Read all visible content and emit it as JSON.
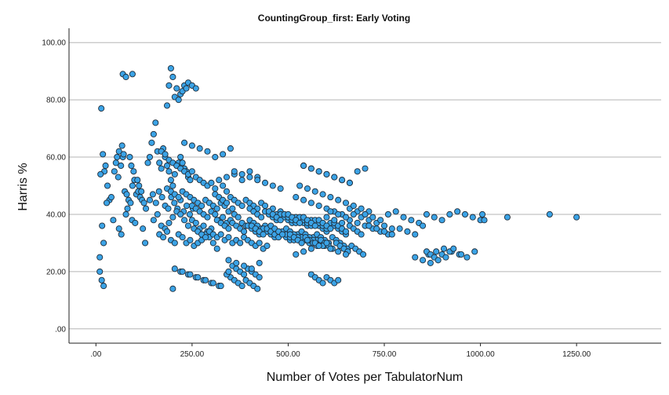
{
  "chart_data": {
    "type": "scatter",
    "title": "CountingGroup_first: Early Voting",
    "xlabel": "Number of Votes per TabulatorNum",
    "ylabel": "Harris %",
    "xlim": [
      -70,
      1470
    ],
    "ylim": [
      -5,
      105
    ],
    "x_ticks": [
      0,
      250,
      500,
      750,
      1000,
      1250
    ],
    "x_tick_labels": [
      ".00",
      "250.00",
      "500.00",
      "750.00",
      "1000.00",
      "1250.00"
    ],
    "y_ticks": [
      0,
      20,
      40,
      60,
      80,
      100
    ],
    "y_tick_labels": [
      ".00",
      "20.00",
      "40.00",
      "60.00",
      "80.00",
      "100.00"
    ],
    "grid": "horizontal",
    "marker_color": "#3ba3e6",
    "series": [
      {
        "x": [
          14,
          18,
          22,
          12,
          25,
          30,
          35,
          40,
          28,
          16,
          20,
          45,
          10,
          55,
          60,
          48,
          52,
          70,
          65,
          58,
          75,
          80,
          85,
          90,
          95,
          100,
          105,
          110,
          115,
          120,
          125,
          130,
          68,
          72,
          88,
          92,
          98,
          108,
          112,
          118,
          60,
          66,
          78,
          82,
          94,
          102,
          122,
          128,
          135,
          140,
          145,
          150,
          155,
          160,
          165,
          170,
          175,
          180,
          185,
          190,
          195,
          200,
          205,
          210,
          215,
          220,
          225,
          230,
          235,
          240,
          245,
          140,
          148,
          156,
          164,
          172,
          180,
          188,
          196,
          204,
          212,
          220,
          228,
          236,
          244,
          252,
          150,
          160,
          170,
          180,
          190,
          200,
          210,
          220,
          230,
          240,
          250,
          260,
          270,
          280,
          290,
          300,
          165,
          175,
          185,
          195,
          205,
          215,
          225,
          235,
          245,
          255,
          265,
          275,
          285,
          295,
          305,
          315,
          170,
          180,
          190,
          200,
          210,
          220,
          230,
          240,
          250,
          260,
          270,
          280,
          290,
          300,
          310,
          320,
          330,
          340,
          185,
          195,
          205,
          215,
          225,
          235,
          245,
          255,
          265,
          275,
          285,
          295,
          305,
          315,
          325,
          335,
          345,
          355,
          250,
          260,
          270,
          280,
          290,
          300,
          310,
          320,
          330,
          340,
          350,
          360,
          370,
          380,
          390,
          400,
          410,
          420,
          430,
          440,
          255,
          265,
          275,
          285,
          295,
          305,
          315,
          325,
          335,
          345,
          355,
          365,
          375,
          385,
          395,
          405,
          415,
          425,
          435,
          445,
          310,
          320,
          330,
          340,
          350,
          360,
          370,
          380,
          390,
          400,
          410,
          420,
          430,
          440,
          450,
          460,
          470,
          480,
          490,
          500,
          315,
          325,
          335,
          345,
          355,
          365,
          375,
          385,
          395,
          405,
          415,
          425,
          435,
          445,
          455,
          465,
          475,
          485,
          495,
          505,
          400,
          410,
          420,
          430,
          440,
          450,
          460,
          470,
          480,
          490,
          500,
          510,
          520,
          530,
          540,
          550,
          560,
          570,
          580,
          590,
          600,
          405,
          415,
          425,
          435,
          445,
          455,
          465,
          475,
          485,
          495,
          505,
          515,
          525,
          535,
          545,
          555,
          565,
          575,
          585,
          595,
          605,
          450,
          460,
          470,
          480,
          490,
          500,
          510,
          520,
          530,
          540,
          550,
          560,
          570,
          580,
          590,
          600,
          610,
          620,
          630,
          640,
          650,
          455,
          465,
          475,
          485,
          495,
          505,
          515,
          525,
          535,
          545,
          555,
          565,
          575,
          585,
          595,
          605,
          615,
          625,
          635,
          645,
          655,
          500,
          510,
          520,
          530,
          540,
          550,
          560,
          570,
          580,
          590,
          600,
          610,
          620,
          630,
          640,
          650,
          660,
          670,
          680,
          690,
          505,
          515,
          525,
          535,
          545,
          555,
          565,
          575,
          585,
          595,
          605,
          615,
          625,
          635,
          645,
          655,
          665,
          675,
          685,
          695,
          520,
          540,
          560,
          580,
          600,
          620,
          640,
          660,
          680,
          700,
          530,
          550,
          570,
          590,
          610,
          630,
          650,
          670,
          690,
          710,
          600,
          620,
          640,
          660,
          680,
          700,
          720,
          740,
          760,
          610,
          630,
          650,
          670,
          690,
          710,
          730,
          750,
          770,
          700,
          720,
          740,
          760,
          780,
          800,
          820,
          840,
          710,
          730,
          750,
          770,
          790,
          810,
          830,
          850,
          860,
          880,
          900,
          920,
          940,
          960,
          980,
          1000,
          865,
          885,
          905,
          925,
          945,
          965,
          985,
          1010,
          1070,
          1180,
          1250,
          1005,
          350,
          360,
          370,
          380,
          390,
          400,
          410,
          420,
          355,
          365,
          375,
          385,
          395,
          405,
          415,
          425,
          560,
          570,
          580,
          590,
          600,
          610,
          620,
          630,
          860,
          870,
          880,
          890,
          900,
          910,
          920,
          930,
          950,
          830,
          850,
          870,
          340,
          360,
          380,
          400,
          420,
          345,
          365,
          385,
          405,
          425,
          200,
          220,
          240,
          260,
          280,
          300,
          320,
          340,
          205,
          225,
          245,
          265,
          285,
          305,
          325,
          345,
          230,
          250,
          270,
          290,
          310,
          330,
          350,
          540,
          560,
          580,
          600,
          620,
          640,
          660,
          550,
          570,
          590,
          610,
          630,
          650,
          540,
          560,
          580,
          600,
          620,
          640,
          660,
          680,
          700,
          10,
          15,
          20,
          70,
          78,
          95,
          190,
          195,
          200,
          210,
          220,
          230,
          240,
          250,
          260,
          185,
          205,
          215,
          225,
          235,
          360,
          380,
          400,
          420,
          440,
          460,
          480,
          520,
          540,
          560,
          580,
          600
        ],
        "y": [
          77,
          61,
          55,
          54,
          57,
          50,
          45,
          46,
          44,
          36,
          30,
          38,
          25,
          60,
          62,
          55,
          58,
          60,
          57,
          53,
          48,
          47,
          45,
          44,
          50,
          52,
          47,
          48,
          46,
          45,
          44,
          42,
          64,
          61,
          60,
          57,
          55,
          52,
          50,
          48,
          35,
          33,
          40,
          42,
          38,
          37,
          35,
          30,
          58,
          60,
          65,
          68,
          72,
          62,
          58,
          56,
          63,
          60,
          57,
          55,
          52,
          50,
          54,
          57,
          58,
          60,
          58,
          56,
          55,
          53,
          52,
          45,
          47,
          44,
          48,
          46,
          43,
          42,
          46,
          44,
          42,
          45,
          41,
          43,
          40,
          42,
          38,
          40,
          36,
          35,
          37,
          39,
          41,
          40,
          38,
          36,
          38,
          37,
          35,
          36,
          34,
          35,
          33,
          32,
          34,
          31,
          30,
          33,
          32,
          30,
          31,
          29,
          30,
          31,
          33,
          32,
          30,
          28,
          62,
          61,
          59,
          58,
          57,
          56,
          55,
          54,
          55,
          53,
          52,
          51,
          50,
          51,
          49,
          52,
          50,
          48,
          49,
          48,
          47,
          46,
          48,
          47,
          46,
          45,
          44,
          43,
          45,
          44,
          43,
          42,
          44,
          43,
          41,
          42,
          43,
          42,
          41,
          40,
          39,
          41,
          40,
          38,
          39,
          37,
          38,
          40,
          39,
          37,
          36,
          38,
          37,
          36,
          35,
          36,
          35,
          34,
          33,
          32,
          34,
          33,
          32,
          33,
          31,
          32,
          30,
          31,
          30,
          32,
          31,
          30,
          29,
          30,
          28,
          29,
          47,
          46,
          45,
          44,
          46,
          45,
          44,
          43,
          45,
          44,
          43,
          42,
          44,
          43,
          41,
          42,
          40,
          41,
          40,
          39,
          38,
          37,
          36,
          35,
          37,
          36,
          35,
          34,
          36,
          35,
          34,
          33,
          35,
          34,
          33,
          32,
          34,
          33,
          32,
          31,
          42,
          41,
          40,
          39,
          41,
          40,
          39,
          38,
          40,
          39,
          38,
          37,
          39,
          38,
          37,
          36,
          38,
          37,
          36,
          35,
          34,
          36,
          35,
          34,
          33,
          35,
          34,
          33,
          32,
          34,
          33,
          32,
          31,
          33,
          32,
          31,
          30,
          32,
          31,
          30,
          29,
          30,
          41,
          40,
          39,
          38,
          40,
          39,
          38,
          37,
          39,
          38,
          37,
          36,
          38,
          37,
          36,
          35,
          37,
          36,
          35,
          34,
          33,
          36,
          35,
          34,
          33,
          35,
          34,
          33,
          32,
          34,
          33,
          32,
          31,
          33,
          32,
          31,
          30,
          32,
          31,
          30,
          29,
          28,
          40,
          39,
          38,
          37,
          39,
          38,
          37,
          36,
          38,
          37,
          36,
          35,
          37,
          36,
          35,
          34,
          36,
          35,
          34,
          33,
          33,
          32,
          31,
          30,
          32,
          31,
          30,
          29,
          31,
          30,
          29,
          28,
          30,
          29,
          28,
          27,
          29,
          28,
          27,
          26,
          46,
          45,
          44,
          43,
          42,
          41,
          40,
          42,
          41,
          40,
          50,
          49,
          48,
          47,
          46,
          45,
          44,
          43,
          42,
          41,
          39,
          38,
          37,
          38,
          37,
          36,
          35,
          34,
          33,
          41,
          40,
          39,
          40,
          39,
          38,
          37,
          36,
          35,
          40,
          39,
          38,
          40,
          41,
          39,
          38,
          37,
          36,
          35,
          34,
          33,
          35,
          34,
          33,
          36,
          40,
          39,
          38,
          40,
          41,
          40,
          39,
          38,
          26,
          27,
          28,
          27,
          26,
          25,
          27,
          38,
          39,
          40,
          39,
          40,
          18,
          17,
          16,
          15,
          17,
          16,
          15,
          14,
          22,
          21,
          20,
          19,
          21,
          20,
          19,
          18,
          19,
          18,
          17,
          16,
          18,
          17,
          16,
          17,
          27,
          26,
          25,
          24,
          26,
          25,
          27,
          28,
          26,
          25,
          24,
          23,
          53,
          54,
          52,
          55,
          53,
          24,
          23,
          22,
          21,
          23,
          14,
          20,
          19,
          18,
          17,
          16,
          15,
          19,
          21,
          20,
          19,
          18,
          17,
          16,
          15,
          20,
          65,
          64,
          63,
          62,
          60,
          61,
          63,
          57,
          56,
          55,
          54,
          53,
          52,
          51,
          31,
          30,
          29,
          28,
          27,
          26,
          57,
          56,
          55,
          54,
          53,
          52,
          51,
          55,
          56,
          20,
          17,
          15,
          89,
          88,
          89,
          85,
          91,
          88,
          84,
          82,
          85,
          86,
          85,
          84,
          78,
          81,
          80,
          83,
          84,
          55,
          54,
          53,
          52,
          51,
          50,
          49,
          26,
          27,
          28,
          29,
          30
        ]
      }
    ]
  }
}
